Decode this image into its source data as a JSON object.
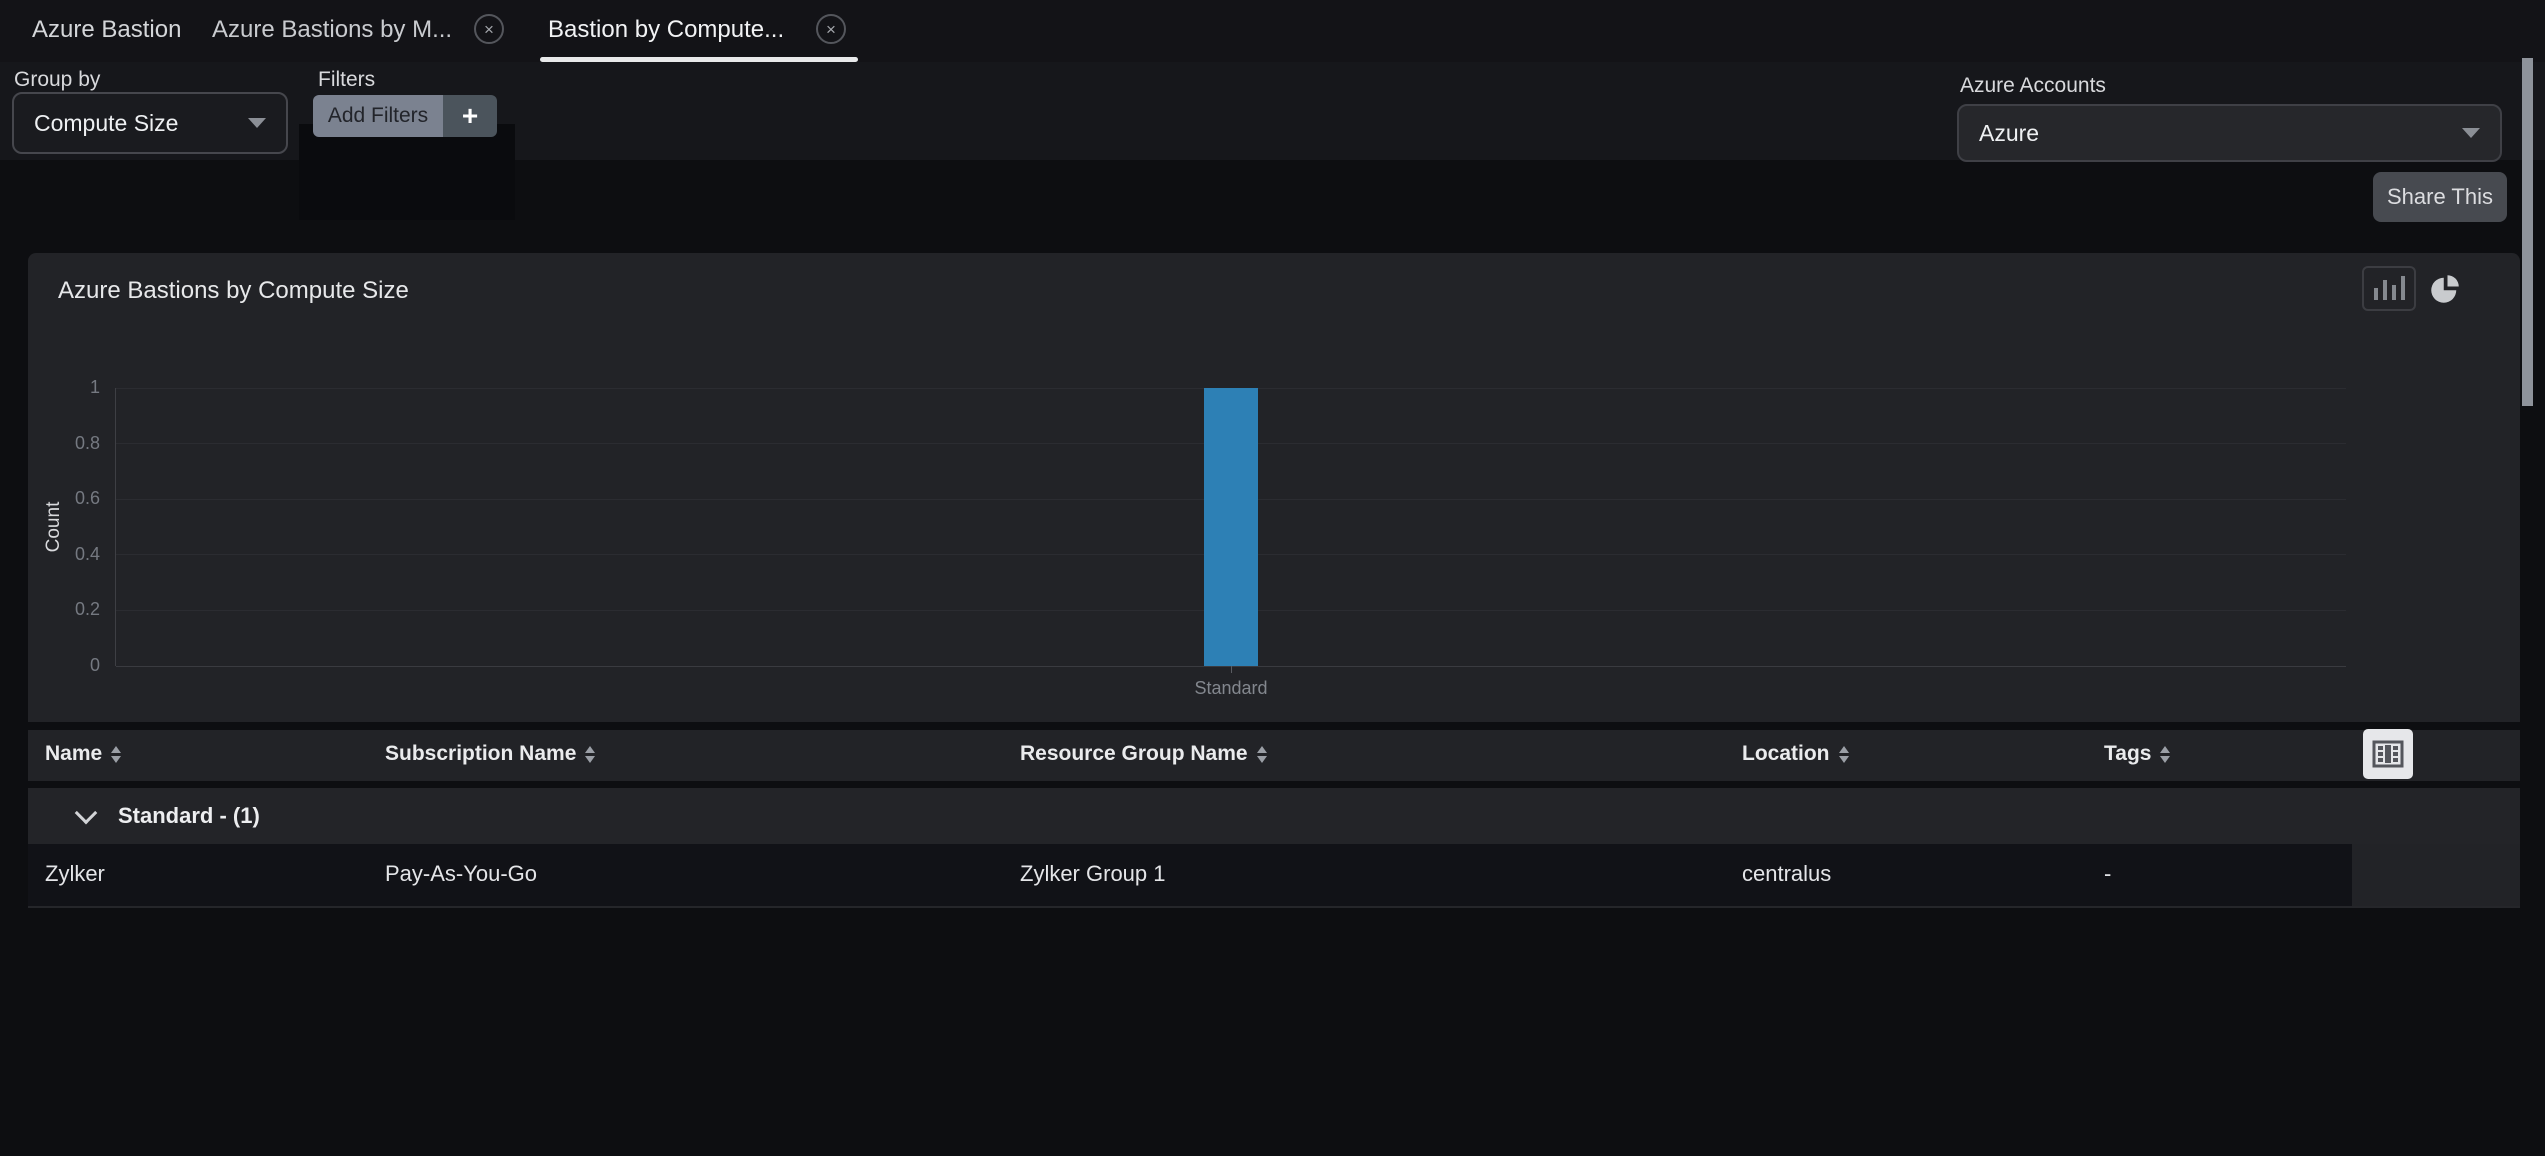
{
  "icons": {
    "close": "×",
    "plus": "+"
  },
  "tabs": [
    {
      "label": "Azure Bastion",
      "closable": false,
      "active": false
    },
    {
      "label": "Azure Bastions by M...",
      "closable": true,
      "active": false
    },
    {
      "label": "Bastion by Compute...",
      "closable": true,
      "active": true
    }
  ],
  "toolbar": {
    "group_by_label": "Group by",
    "group_by_value": "Compute Size",
    "filters_label": "Filters",
    "add_filters_label": "Add Filters",
    "accounts_label": "Azure Accounts",
    "accounts_value": "Azure"
  },
  "actions": {
    "share_label": "Share This"
  },
  "panel": {
    "title": "Azure Bastions by Compute Size"
  },
  "chart_data": {
    "type": "bar",
    "title": "Azure Bastions by Compute Size",
    "categories": [
      "Standard"
    ],
    "values": [
      1
    ],
    "xlabel": "",
    "ylabel": "Count",
    "ylim": [
      0,
      1
    ],
    "yticks": [
      0,
      0.2,
      0.4,
      0.6,
      0.8,
      1
    ],
    "bar_color": "#2d80b5",
    "grid": true,
    "legend": false
  },
  "table": {
    "columns": [
      "Name",
      "Subscription Name",
      "Resource Group Name",
      "Location",
      "Tags"
    ],
    "group_label": "Standard - (1)",
    "rows": [
      {
        "name": "Zylker",
        "subscription": "Pay-As-You-Go",
        "resource_group": "Zylker Group 1",
        "location": "centralus",
        "tags": "-"
      }
    ]
  },
  "colors": {
    "accent_blue": "#2d80b5",
    "panel_bg": "#222327",
    "page_bg": "#0d0e11"
  }
}
